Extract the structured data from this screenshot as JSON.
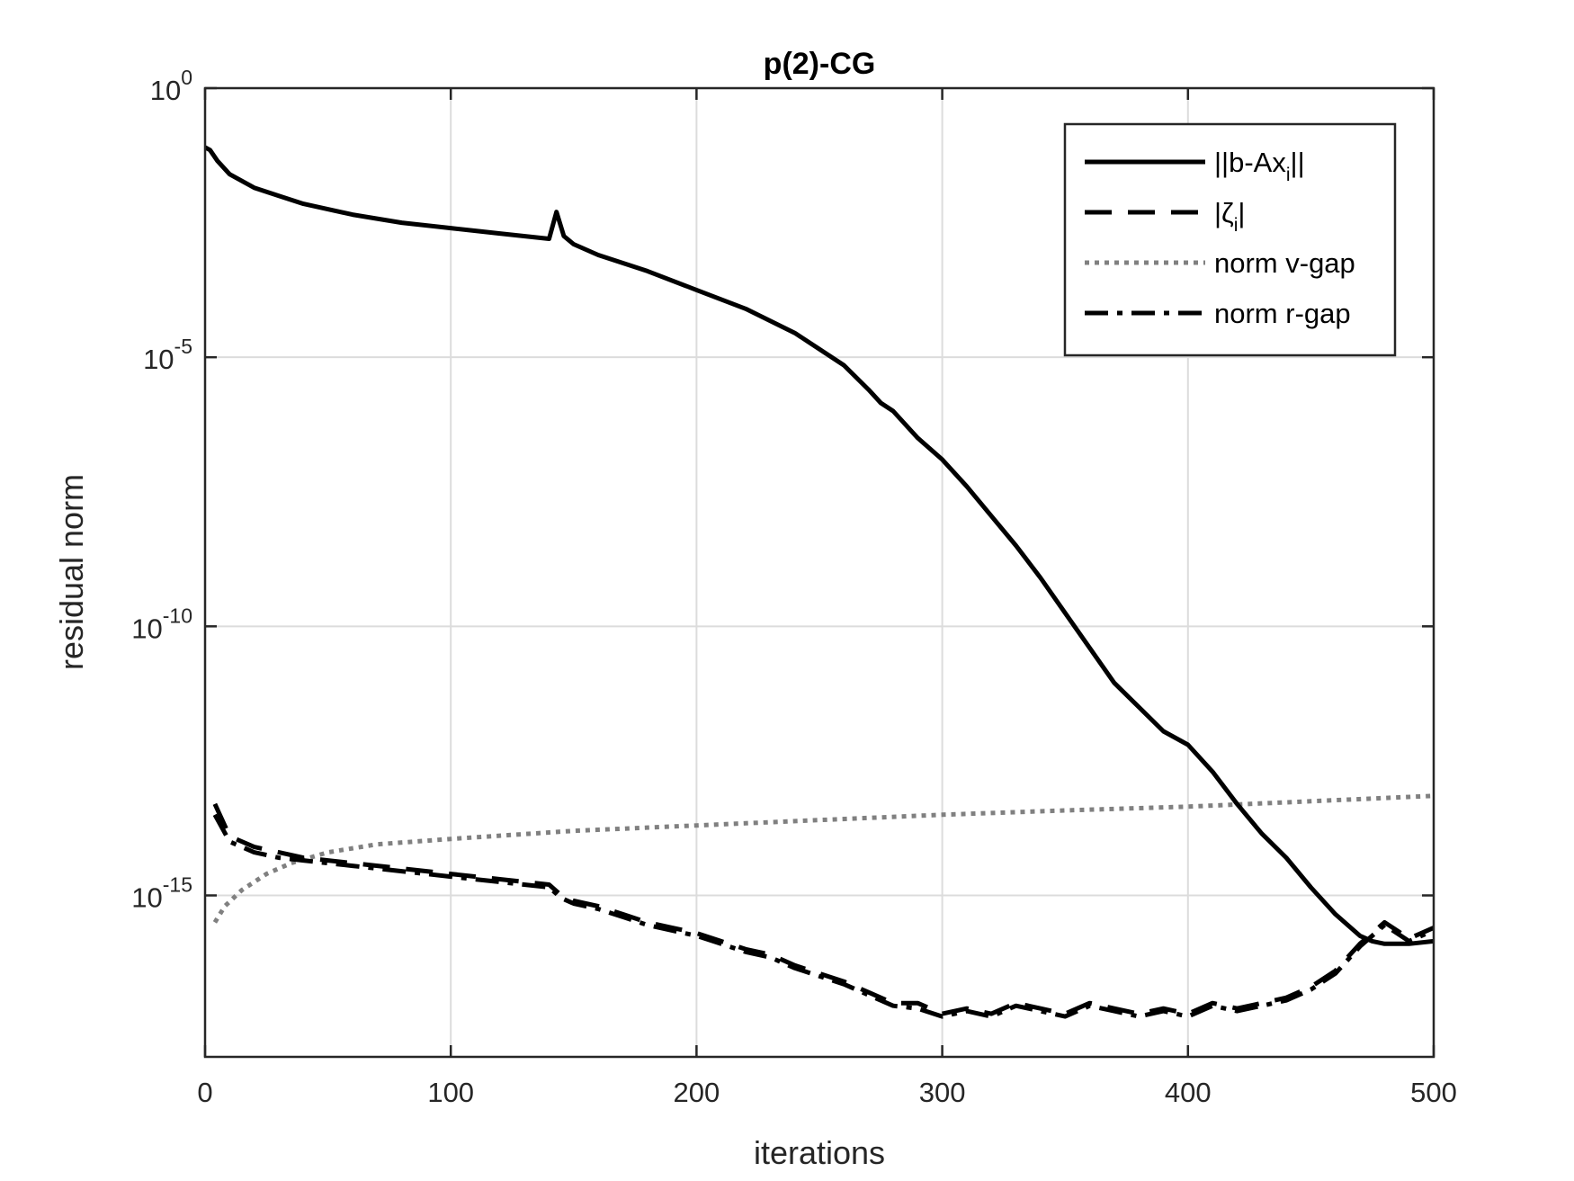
{
  "chart_data": {
    "type": "line",
    "title": "p(2)-CG",
    "xlabel": "iterations",
    "ylabel": "residual norm",
    "xlim": [
      0,
      500
    ],
    "ylim_log10": [
      -18,
      0
    ],
    "y_scale": "log",
    "grid": true,
    "legend_position": "top-right",
    "x_ticks": [
      "0",
      "100",
      "200",
      "300",
      "400",
      "500"
    ],
    "x_tick_values": [
      0,
      100,
      200,
      300,
      400,
      500
    ],
    "y_ticks": [
      {
        "base": "10",
        "exp": "0",
        "value": 0
      },
      {
        "base": "10",
        "exp": "-5",
        "value": -5
      },
      {
        "base": "10",
        "exp": "-10",
        "value": -10
      },
      {
        "base": "10",
        "exp": "-15",
        "value": -15
      }
    ],
    "series": [
      {
        "name": "||b-Ax_i||",
        "label_main": "||b-Ax",
        "label_sub": "i",
        "label_tail": "||",
        "style": "solid",
        "color": "#000000",
        "x": [
          0,
          2,
          5,
          10,
          20,
          30,
          40,
          60,
          80,
          100,
          120,
          140,
          143,
          146,
          150,
          160,
          180,
          200,
          220,
          240,
          260,
          270,
          275,
          280,
          290,
          300,
          310,
          320,
          330,
          340,
          350,
          360,
          370,
          380,
          390,
          400,
          410,
          420,
          430,
          440,
          450,
          460,
          470,
          475,
          480,
          490,
          500
        ],
        "y_log10": [
          -1.1,
          -1.15,
          -1.35,
          -1.6,
          -1.85,
          -2.0,
          -2.15,
          -2.35,
          -2.5,
          -2.6,
          -2.7,
          -2.8,
          -2.3,
          -2.75,
          -2.9,
          -3.1,
          -3.4,
          -3.75,
          -4.1,
          -4.55,
          -5.15,
          -5.6,
          -5.85,
          -6.0,
          -6.5,
          -6.9,
          -7.4,
          -7.95,
          -8.5,
          -9.1,
          -9.75,
          -10.4,
          -11.05,
          -11.5,
          -11.95,
          -12.2,
          -12.7,
          -13.3,
          -13.85,
          -14.3,
          -14.85,
          -15.35,
          -15.75,
          -15.85,
          -15.9,
          -15.9,
          -15.85
        ]
      },
      {
        "name": "|ζ_i|",
        "label_main": "|ζ",
        "label_sub": "i",
        "label_tail": "|",
        "style": "dashed",
        "color": "#000000",
        "x": [
          4,
          10,
          20,
          30,
          40,
          50,
          60,
          80,
          100,
          120,
          140,
          145,
          150,
          160,
          170,
          180,
          190,
          200,
          210,
          220,
          230,
          240,
          250,
          260,
          270,
          280,
          290,
          300,
          310,
          320,
          330,
          340,
          350,
          360,
          370,
          380,
          390,
          400,
          410,
          420,
          430,
          440,
          450,
          460,
          470,
          480,
          490,
          500
        ],
        "y_log10": [
          -13.3,
          -13.9,
          -14.1,
          -14.2,
          -14.3,
          -14.35,
          -14.4,
          -14.5,
          -14.6,
          -14.7,
          -14.8,
          -15.0,
          -15.1,
          -15.2,
          -15.35,
          -15.5,
          -15.6,
          -15.7,
          -15.85,
          -16.0,
          -16.1,
          -16.3,
          -16.45,
          -16.6,
          -16.8,
          -17.0,
          -17.0,
          -17.2,
          -17.1,
          -17.2,
          -17.0,
          -17.1,
          -17.2,
          -17.0,
          -17.1,
          -17.2,
          -17.1,
          -17.2,
          -17.0,
          -17.1,
          -17.0,
          -16.9,
          -16.7,
          -16.4,
          -15.9,
          -15.5,
          -15.8,
          -15.6
        ]
      },
      {
        "name": "norm v-gap",
        "label_main": "norm v-gap",
        "label_sub": "",
        "label_tail": "",
        "style": "dotted",
        "color": "#808080",
        "x": [
          4,
          8,
          15,
          25,
          35,
          50,
          70,
          100,
          150,
          200,
          250,
          300,
          350,
          400,
          450,
          500
        ],
        "y_log10": [
          -15.5,
          -15.2,
          -14.9,
          -14.6,
          -14.4,
          -14.2,
          -14.05,
          -13.95,
          -13.8,
          -13.7,
          -13.6,
          -13.5,
          -13.42,
          -13.35,
          -13.25,
          -13.15
        ]
      },
      {
        "name": "norm r-gap",
        "label_main": "norm r-gap",
        "label_sub": "",
        "label_tail": "",
        "style": "dashdot",
        "color": "#000000",
        "x": [
          4,
          10,
          20,
          30,
          40,
          50,
          60,
          80,
          100,
          120,
          140,
          145,
          150,
          160,
          170,
          180,
          190,
          200,
          210,
          220,
          230,
          240,
          250,
          260,
          270,
          280,
          290,
          300,
          310,
          320,
          330,
          340,
          350,
          360,
          370,
          380,
          390,
          400,
          410,
          420,
          430,
          440,
          450,
          460,
          470,
          480,
          490,
          500
        ],
        "y_log10": [
          -13.5,
          -14.0,
          -14.2,
          -14.3,
          -14.35,
          -14.4,
          -14.45,
          -14.55,
          -14.65,
          -14.75,
          -14.85,
          -15.05,
          -15.15,
          -15.25,
          -15.4,
          -15.55,
          -15.65,
          -15.75,
          -15.9,
          -16.05,
          -16.15,
          -16.35,
          -16.5,
          -16.65,
          -16.85,
          -17.05,
          -17.1,
          -17.25,
          -17.15,
          -17.25,
          -17.05,
          -17.15,
          -17.25,
          -17.05,
          -17.15,
          -17.25,
          -17.15,
          -17.25,
          -17.05,
          -17.15,
          -17.05,
          -16.95,
          -16.75,
          -16.45,
          -15.95,
          -15.55,
          -15.85,
          -15.65
        ]
      }
    ]
  }
}
